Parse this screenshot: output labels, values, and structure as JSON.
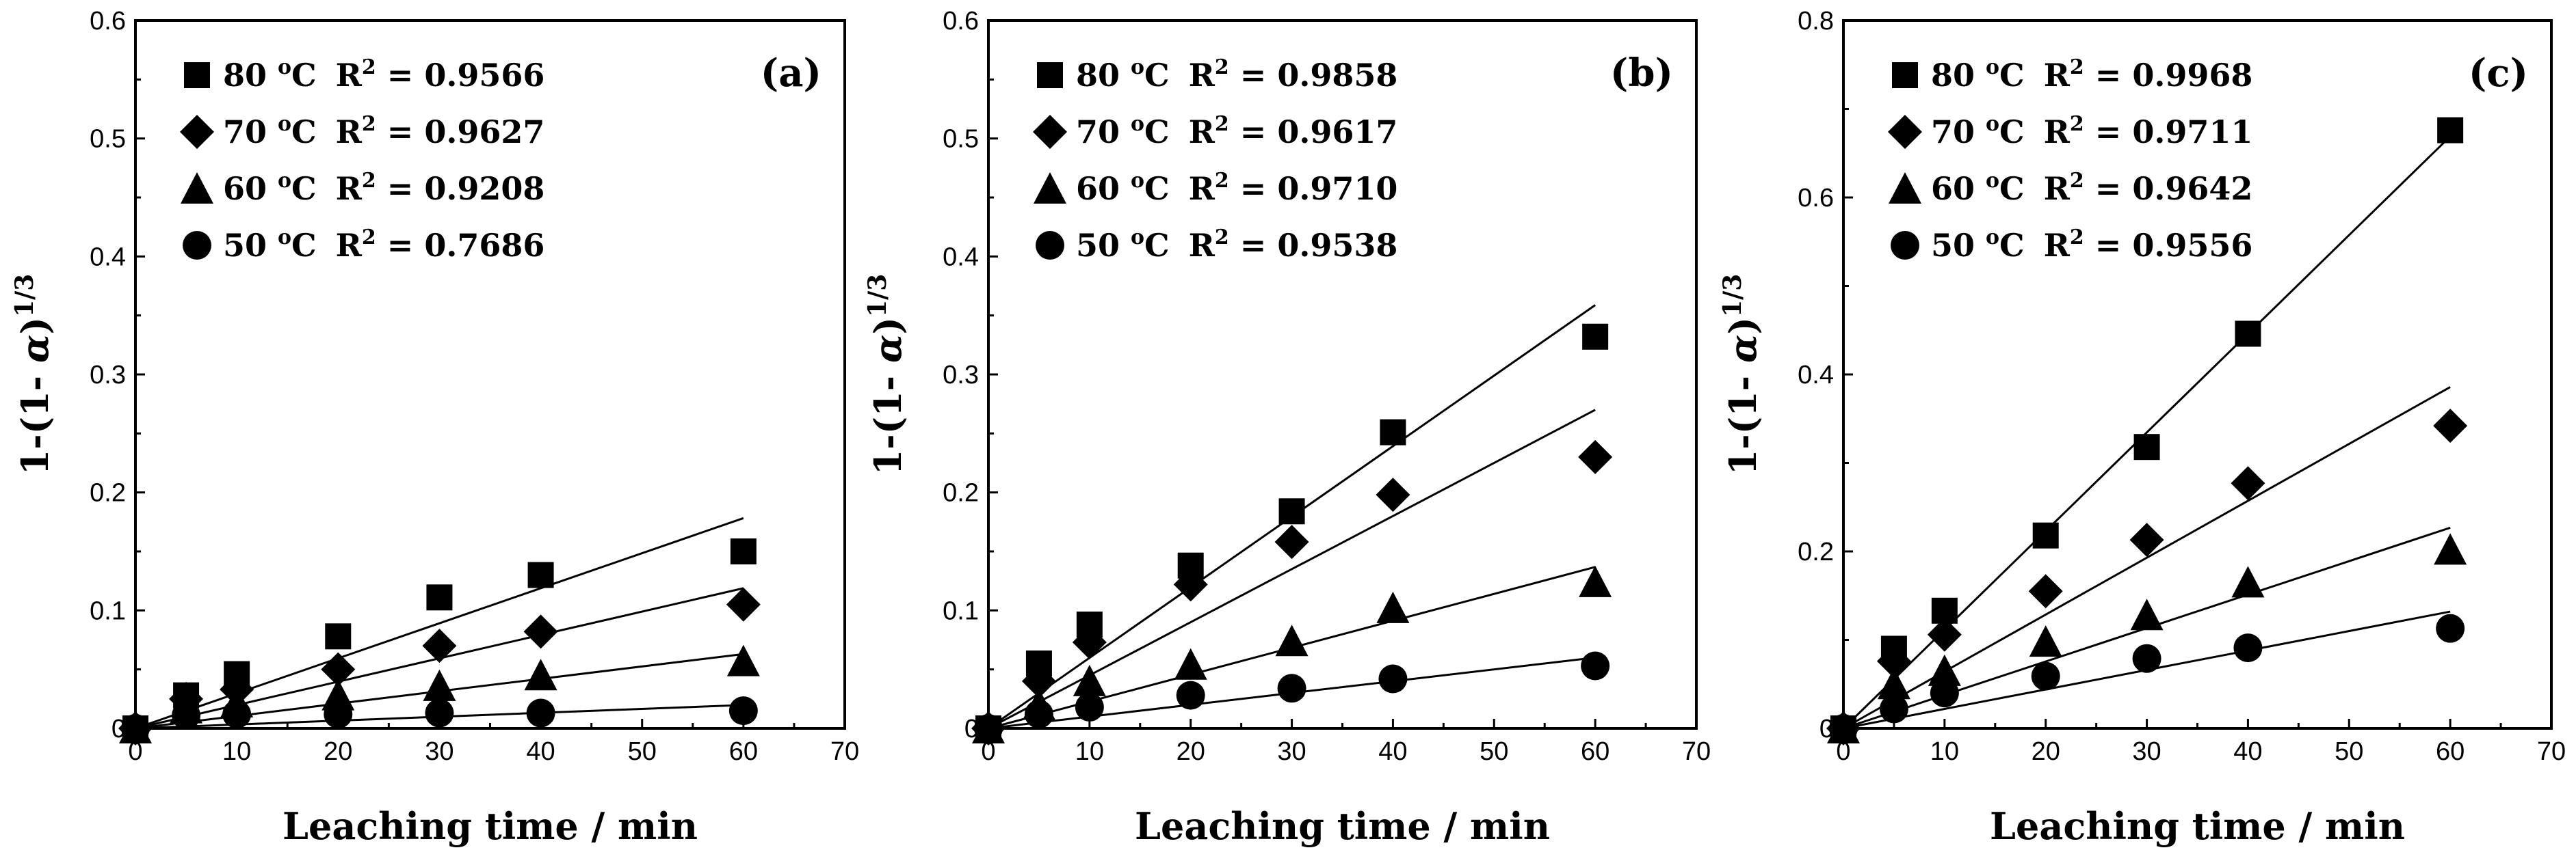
{
  "chart_data": [
    {
      "type": "scatter",
      "panel_label": "(a)",
      "xlabel": "Leaching time / min",
      "ylabel_prefix": "1-(1- ",
      "ylabel_symbol": "α",
      "ylabel_suffix": ")",
      "ylabel_exponent": "1/3",
      "xlim": [
        0,
        70
      ],
      "ylim": [
        0,
        0.6
      ],
      "xticks": [
        "0",
        "10",
        "20",
        "30",
        "40",
        "50",
        "60",
        "70"
      ],
      "yticks": [
        "0",
        "0.1",
        "0.2",
        "0.3",
        "0.4",
        "0.5",
        "0.6"
      ],
      "legend_position": "top-left",
      "series": [
        {
          "name": "80 oC",
          "temp": "80",
          "unit_sup": "o",
          "unit": "C",
          "r2_label": "R",
          "r2_sup": "2",
          "r2_value": "= 0.9566",
          "marker": "square",
          "x": [
            0,
            5,
            10,
            20,
            30,
            40,
            60
          ],
          "y": [
            0,
            0.028,
            0.046,
            0.078,
            0.111,
            0.13,
            0.15
          ],
          "slope": 0.00297
        },
        {
          "name": "70 oC",
          "temp": "70",
          "unit_sup": "o",
          "unit": "C",
          "r2_label": "R",
          "r2_sup": "2",
          "r2_value": "= 0.9627",
          "marker": "diamond",
          "x": [
            0,
            5,
            10,
            20,
            30,
            40,
            60
          ],
          "y": [
            0,
            0.025,
            0.033,
            0.05,
            0.07,
            0.082,
            0.105
          ],
          "slope": 0.00198
        },
        {
          "name": "60 oC",
          "temp": "60",
          "unit_sup": "o",
          "unit": "C",
          "r2_label": "R",
          "r2_sup": "2",
          "r2_value": "= 0.9208",
          "marker": "triangle",
          "x": [
            0,
            5,
            10,
            20,
            30,
            40,
            60
          ],
          "y": [
            0,
            0.017,
            0.022,
            0.028,
            0.036,
            0.045,
            0.057
          ],
          "slope": 0.00105
        },
        {
          "name": "50 oC",
          "temp": "50",
          "unit_sup": "o",
          "unit": "C",
          "r2_label": "R",
          "r2_sup": "2",
          "r2_value": "= 0.7686",
          "marker": "circle",
          "x": [
            0,
            5,
            10,
            20,
            30,
            40,
            60
          ],
          "y": [
            0,
            0.011,
            0.012,
            0.012,
            0.013,
            0.013,
            0.015
          ],
          "slope": 0.00033
        }
      ]
    },
    {
      "type": "scatter",
      "panel_label": "(b)",
      "xlabel": "Leaching time / min",
      "ylabel_prefix": "1-(1- ",
      "ylabel_symbol": "α",
      "ylabel_suffix": ")",
      "ylabel_exponent": "1/3",
      "xlim": [
        0,
        70
      ],
      "ylim": [
        0,
        0.6
      ],
      "xticks": [
        "0",
        "10",
        "20",
        "30",
        "40",
        "50",
        "60",
        "70"
      ],
      "yticks": [
        "0",
        "0.1",
        "0.2",
        "0.3",
        "0.4",
        "0.5",
        "0.6"
      ],
      "legend_position": "top-left",
      "series": [
        {
          "name": "80 oC",
          "temp": "80",
          "unit_sup": "o",
          "unit": "C",
          "r2_label": "R",
          "r2_sup": "2",
          "r2_value": "= 0.9858",
          "marker": "square",
          "x": [
            0,
            5,
            10,
            20,
            30,
            40,
            60
          ],
          "y": [
            0,
            0.055,
            0.088,
            0.138,
            0.184,
            0.251,
            0.332
          ],
          "slope": 0.00598
        },
        {
          "name": "70 oC",
          "temp": "70",
          "unit_sup": "o",
          "unit": "C",
          "r2_label": "R",
          "r2_sup": "2",
          "r2_value": "= 0.9617",
          "marker": "diamond",
          "x": [
            0,
            5,
            10,
            20,
            30,
            40,
            60
          ],
          "y": [
            0,
            0.04,
            0.073,
            0.122,
            0.158,
            0.198,
            0.23
          ],
          "slope": 0.0045
        },
        {
          "name": "60 oC",
          "temp": "60",
          "unit_sup": "o",
          "unit": "C",
          "r2_label": "R",
          "r2_sup": "2",
          "r2_value": "= 0.9710",
          "marker": "triangle",
          "x": [
            0,
            5,
            10,
            20,
            30,
            40,
            60
          ],
          "y": [
            0,
            0.02,
            0.04,
            0.054,
            0.074,
            0.102,
            0.124
          ],
          "slope": 0.00228
        },
        {
          "name": "50 oC",
          "temp": "50",
          "unit_sup": "o",
          "unit": "C",
          "r2_label": "R",
          "r2_sup": "2",
          "r2_value": "= 0.9538",
          "marker": "circle",
          "x": [
            0,
            5,
            10,
            20,
            30,
            40,
            60
          ],
          "y": [
            0,
            0.012,
            0.018,
            0.028,
            0.034,
            0.042,
            0.053
          ],
          "slope": 0.001
        }
      ]
    },
    {
      "type": "scatter",
      "panel_label": "(c)",
      "xlabel": "Leaching time / min",
      "ylabel_prefix": "1-(1- ",
      "ylabel_symbol": "α",
      "ylabel_suffix": ")",
      "ylabel_exponent": "1/3",
      "xlim": [
        0,
        70
      ],
      "ylim": [
        0,
        0.8
      ],
      "xticks": [
        "0",
        "10",
        "20",
        "30",
        "40",
        "50",
        "60",
        "70"
      ],
      "yticks": [
        "0",
        "0.2",
        "0.4",
        "0.6",
        "0.8"
      ],
      "legend_position": "top-left",
      "series": [
        {
          "name": "80 oC",
          "temp": "80",
          "unit_sup": "o",
          "unit": "C",
          "r2_label": "R",
          "r2_sup": "2",
          "r2_value": "= 0.9968",
          "marker": "square",
          "x": [
            0,
            5,
            10,
            20,
            30,
            40,
            60
          ],
          "y": [
            0,
            0.09,
            0.133,
            0.218,
            0.318,
            0.446,
            0.676
          ],
          "slope": 0.01115
        },
        {
          "name": "70 oC",
          "temp": "70",
          "unit_sup": "o",
          "unit": "C",
          "r2_label": "R",
          "r2_sup": "2",
          "r2_value": "= 0.9711",
          "marker": "diamond",
          "x": [
            0,
            5,
            10,
            20,
            30,
            40,
            60
          ],
          "y": [
            0,
            0.076,
            0.106,
            0.155,
            0.213,
            0.277,
            0.342
          ],
          "slope": 0.00643
        },
        {
          "name": "60 oC",
          "temp": "60",
          "unit_sup": "o",
          "unit": "C",
          "r2_label": "R",
          "r2_sup": "2",
          "r2_value": "= 0.9642",
          "marker": "triangle",
          "x": [
            0,
            5,
            10,
            20,
            30,
            40,
            60
          ],
          "y": [
            0,
            0.05,
            0.065,
            0.098,
            0.128,
            0.165,
            0.202
          ],
          "slope": 0.00378
        },
        {
          "name": "50 oC",
          "temp": "50",
          "unit_sup": "o",
          "unit": "C",
          "r2_label": "R",
          "r2_sup": "2",
          "r2_value": "= 0.9556",
          "marker": "circle",
          "x": [
            0,
            5,
            10,
            20,
            30,
            40,
            60
          ],
          "y": [
            0,
            0.022,
            0.04,
            0.059,
            0.079,
            0.091,
            0.113
          ],
          "slope": 0.0022
        }
      ]
    }
  ]
}
